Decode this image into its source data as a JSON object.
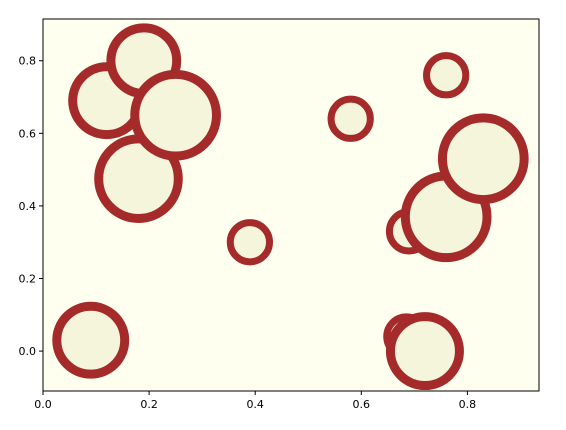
{
  "chart_data": {
    "type": "scatter",
    "title": "",
    "xlabel": "",
    "ylabel": "",
    "xlim": [
      0.0,
      0.935
    ],
    "ylim": [
      -0.11,
      0.915
    ],
    "x_ticks": [
      "0.0",
      "0.2",
      "0.4",
      "0.6",
      "0.8"
    ],
    "y_ticks": [
      "0.0",
      "0.2",
      "0.4",
      "0.6",
      "0.8"
    ],
    "grid": false,
    "legend": "none",
    "marker": "circle",
    "colors": {
      "fill": "#f5f5dc",
      "edge": "#a52a2a",
      "axes_background": "#fffff0",
      "figure_background": "#ffffff"
    },
    "points": [
      {
        "x": 0.09,
        "y": 0.03,
        "size": 0.064
      },
      {
        "x": 0.12,
        "y": 0.69,
        "size": 0.064
      },
      {
        "x": 0.18,
        "y": 0.475,
        "size": 0.075
      },
      {
        "x": 0.19,
        "y": 0.8,
        "size": 0.062
      },
      {
        "x": 0.25,
        "y": 0.65,
        "size": 0.077
      },
      {
        "x": 0.39,
        "y": 0.3,
        "size": 0.037
      },
      {
        "x": 0.58,
        "y": 0.64,
        "size": 0.037
      },
      {
        "x": 0.685,
        "y": 0.04,
        "size": 0.037
      },
      {
        "x": 0.69,
        "y": 0.33,
        "size": 0.037
      },
      {
        "x": 0.72,
        "y": 0.0,
        "size": 0.065
      },
      {
        "x": 0.76,
        "y": 0.37,
        "size": 0.077
      },
      {
        "x": 0.76,
        "y": 0.76,
        "size": 0.037
      },
      {
        "x": 0.83,
        "y": 0.53,
        "size": 0.077
      }
    ]
  }
}
